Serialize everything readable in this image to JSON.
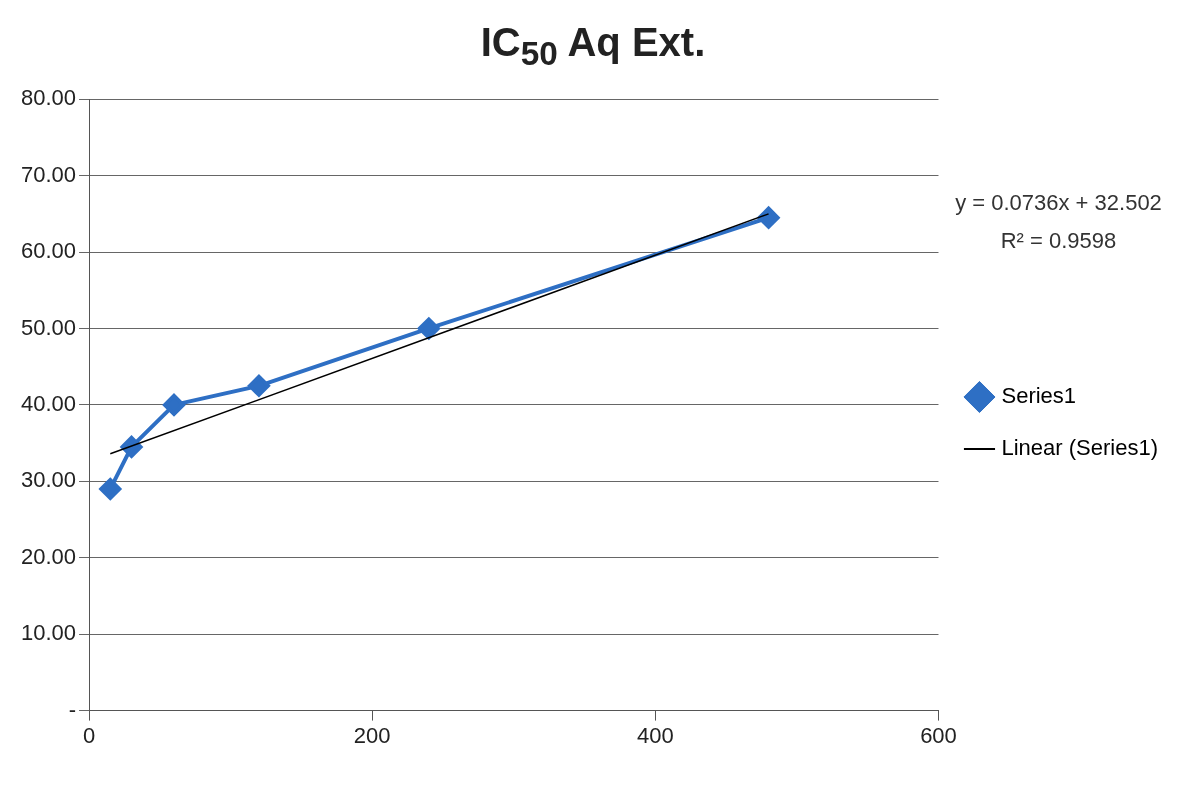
{
  "chart_data": {
    "type": "line",
    "title": "IC$_{50}$ Aq Ext.",
    "xlim": [
      0,
      600
    ],
    "xticks": [
      0,
      200,
      400,
      600
    ],
    "ylim": [
      0,
      80
    ],
    "yticks": [
      {
        "value": 0,
        "label": "-"
      },
      {
        "value": 10,
        "label": "10.00"
      },
      {
        "value": 20,
        "label": "20.00"
      },
      {
        "value": 30,
        "label": "30.00"
      },
      {
        "value": 40,
        "label": "40.00"
      },
      {
        "value": 50,
        "label": "50.00"
      },
      {
        "value": 60,
        "label": "60.00"
      },
      {
        "value": 70,
        "label": "70.00"
      },
      {
        "value": 80,
        "label": "80.00"
      }
    ],
    "grid": "y",
    "legend": "right",
    "annotations": [
      "y = 0.0736x + 32.502",
      "R² = 0.9598"
    ],
    "series": [
      {
        "name": "Series1",
        "color": "#2e6fc4",
        "marker": "diamond",
        "x": [
          15,
          30,
          60,
          120,
          240,
          480
        ],
        "values": [
          29,
          34.5,
          40,
          42.5,
          50,
          64.5
        ]
      },
      {
        "name": "Linear (Series1)",
        "type": "line",
        "color": "#000000",
        "marker": "none",
        "x": [
          15,
          480
        ],
        "values": [
          33.6,
          65
        ]
      }
    ]
  }
}
